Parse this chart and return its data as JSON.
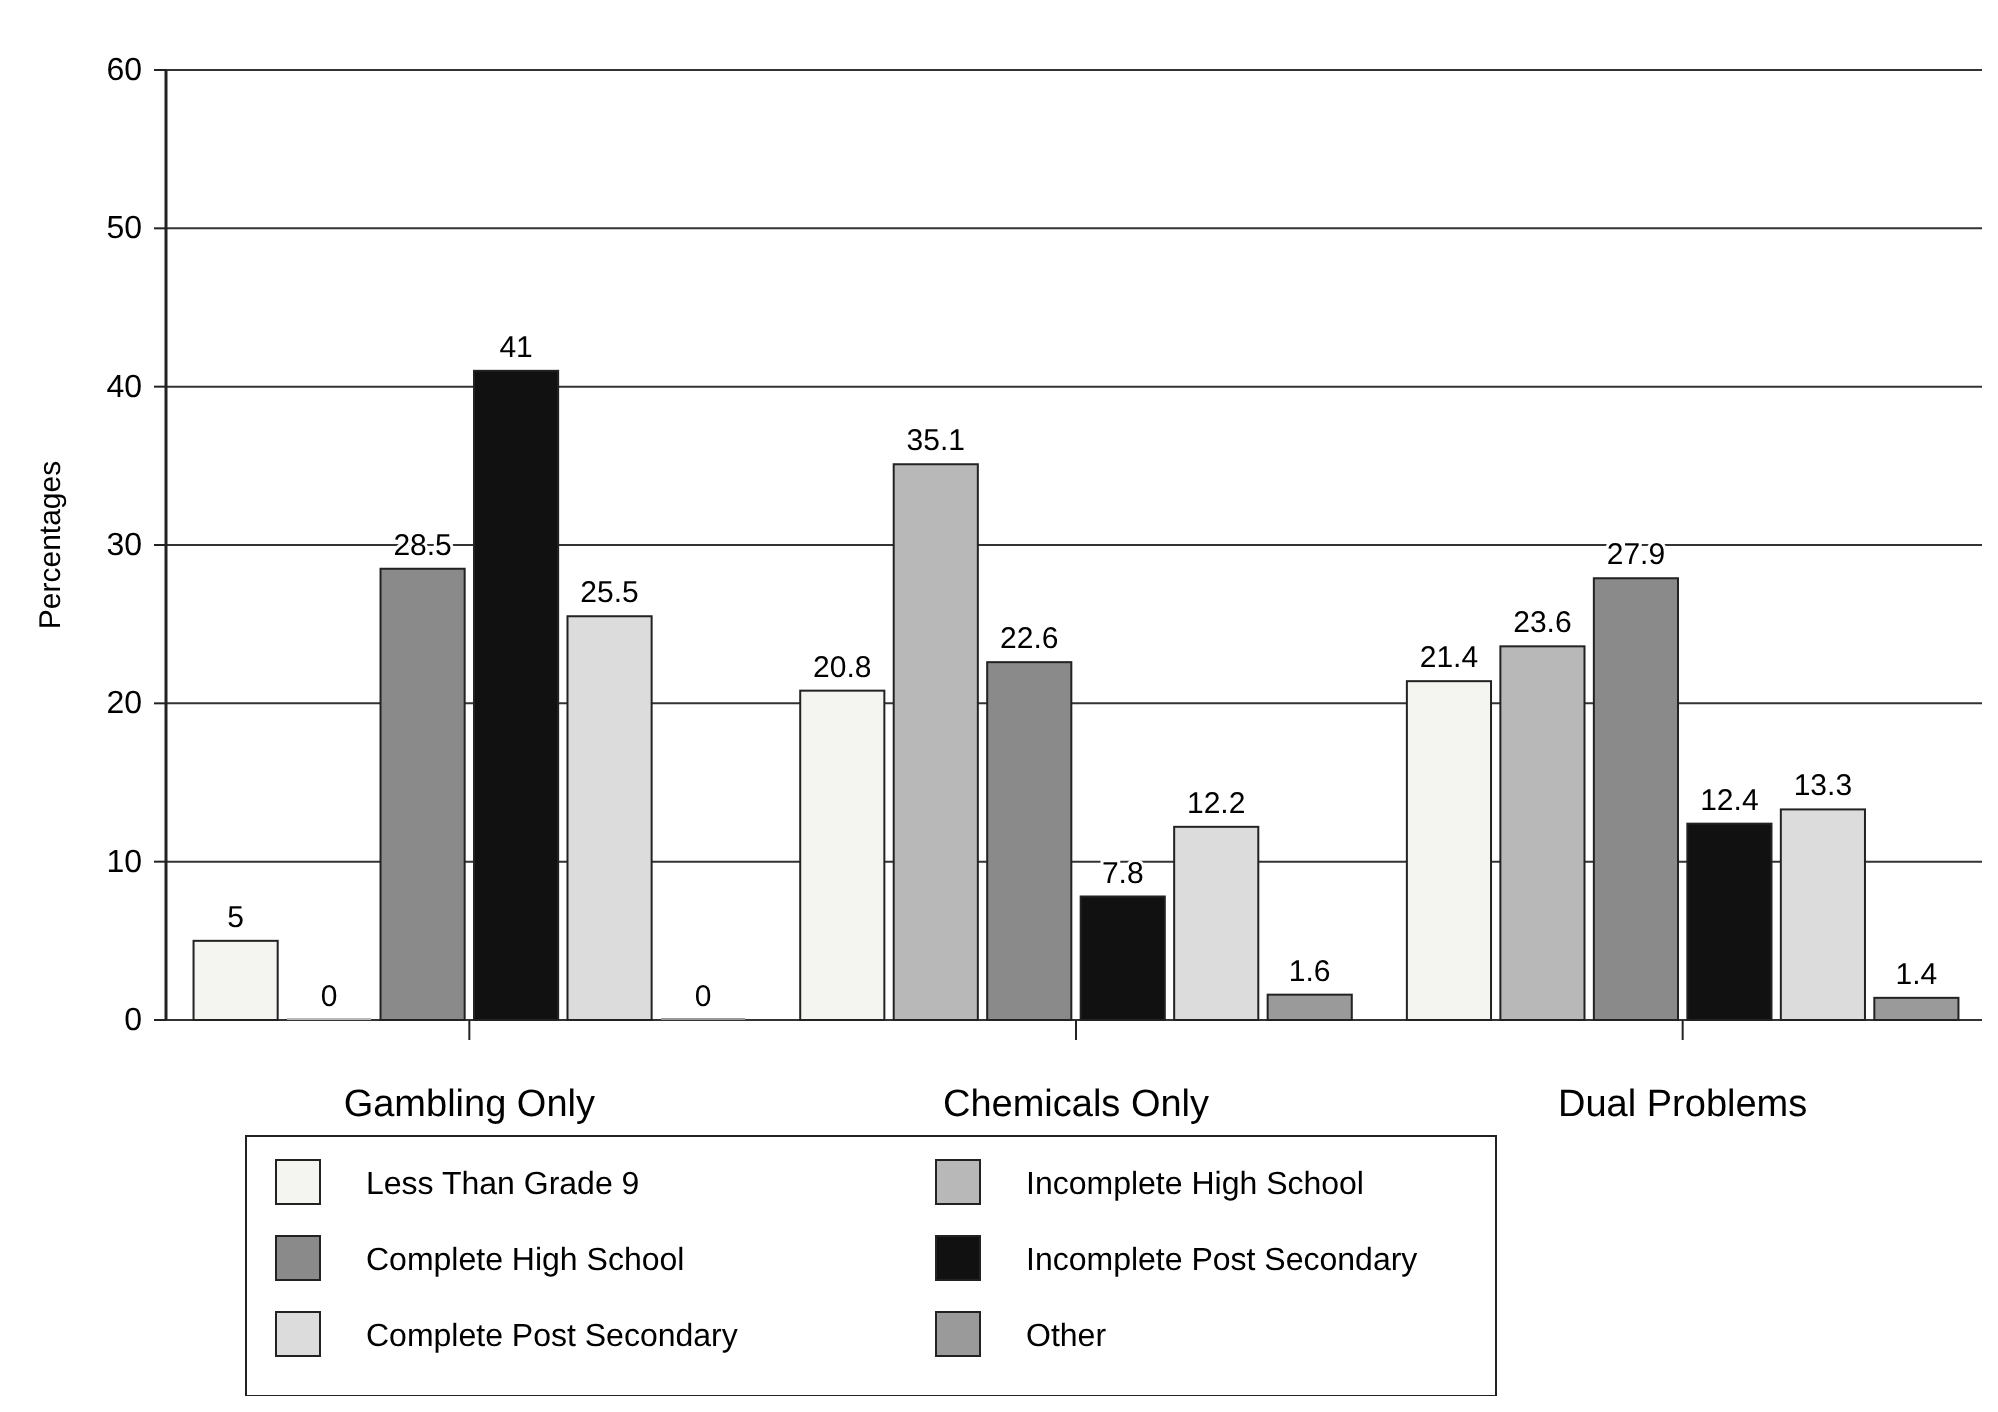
{
  "chart_data": {
    "type": "bar",
    "ylabel": "Percentages",
    "categories": [
      "Gambling Only",
      "Chemicals Only",
      "Dual Problems"
    ],
    "series": [
      {
        "name": "Less Than Grade 9",
        "color": "#f4f4f0",
        "values": [
          5,
          20.8,
          21.4
        ]
      },
      {
        "name": "Incomplete High School",
        "color": "#b8b8b8",
        "values": [
          0,
          35.1,
          23.6
        ]
      },
      {
        "name": "Complete High School",
        "color": "#8a8a8a",
        "values": [
          28.5,
          22.6,
          27.9
        ]
      },
      {
        "name": "Incomplete Post Secondary",
        "color": "#111111",
        "values": [
          41,
          7.8,
          12.4
        ]
      },
      {
        "name": "Complete Post Secondary",
        "color": "#dcdcdc",
        "values": [
          25.5,
          12.2,
          13.3
        ]
      },
      {
        "name": "Other",
        "color": "#9a9a9a",
        "values": [
          0,
          1.6,
          1.4
        ]
      }
    ],
    "ylim": [
      0,
      60
    ],
    "yticks": [
      0,
      10,
      20,
      30,
      40,
      50,
      60
    ],
    "grid": "y",
    "legend": "bottom",
    "data_labels": true
  }
}
